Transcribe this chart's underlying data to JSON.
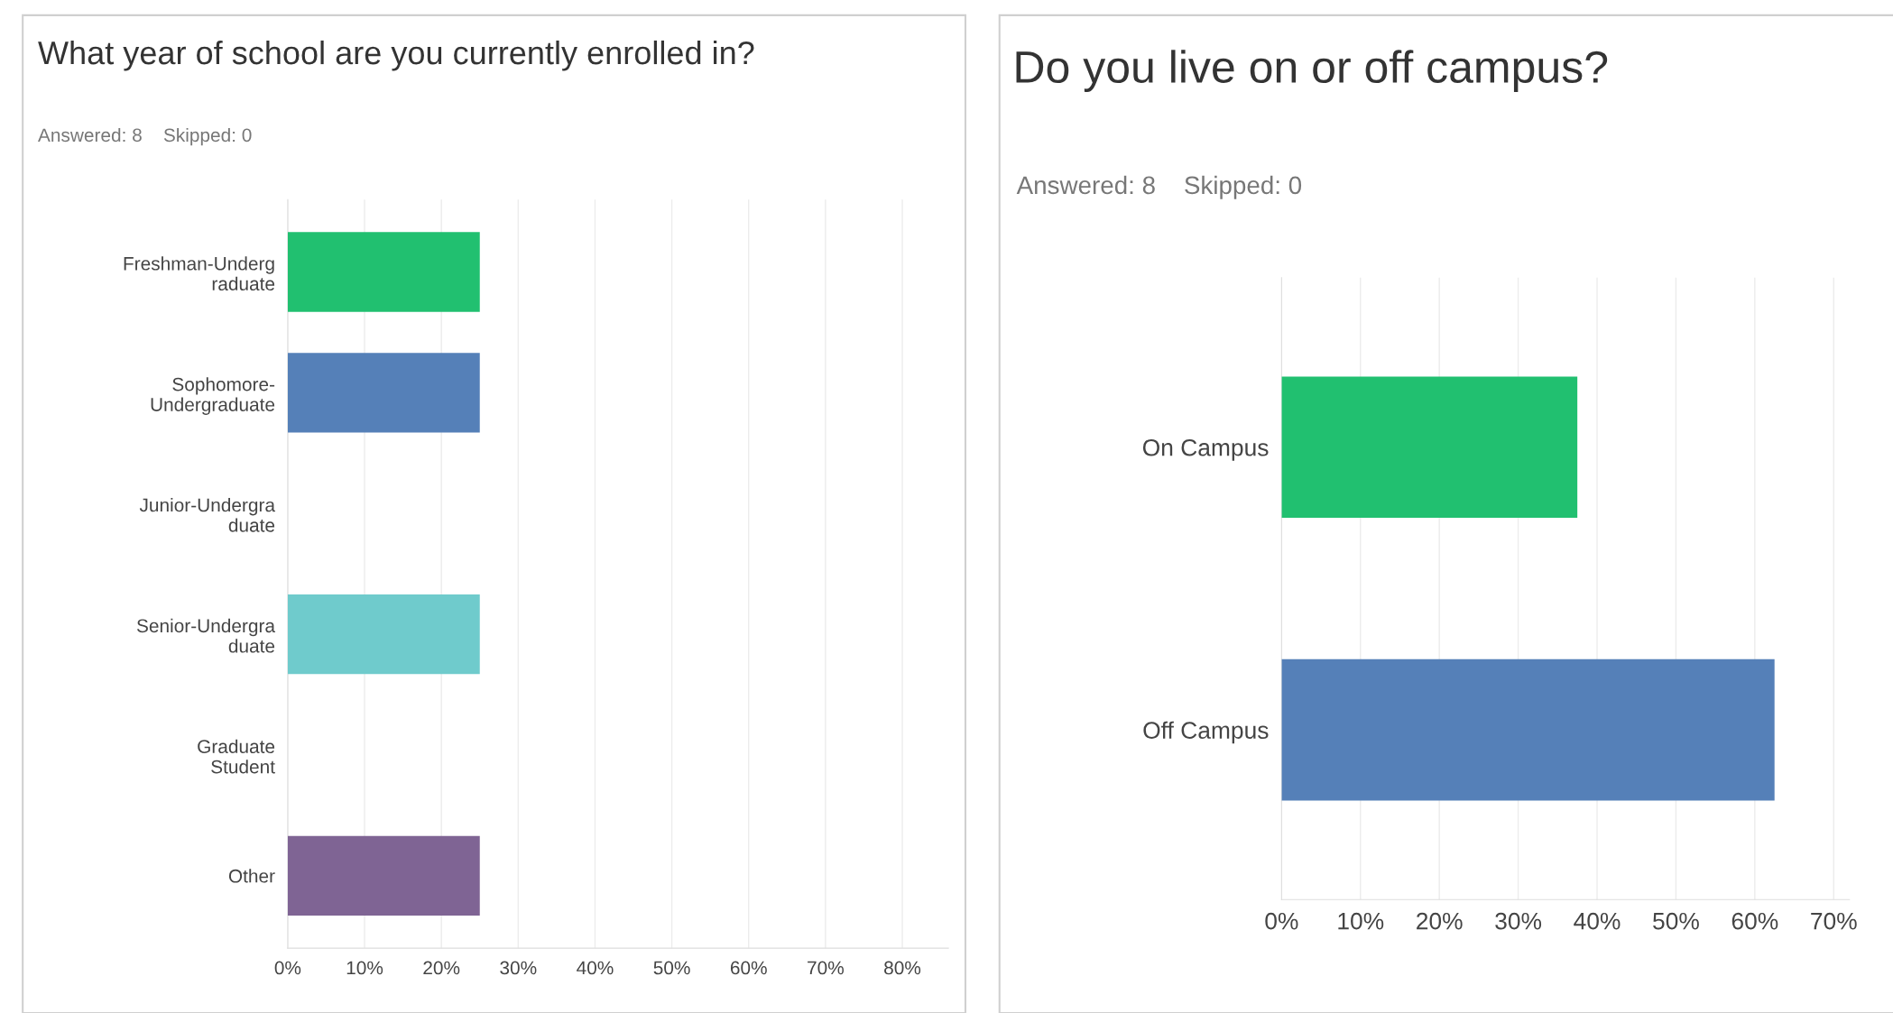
{
  "chart_data": [
    {
      "type": "bar",
      "orientation": "horizontal",
      "title": "What year of school are you currently enrolled in?",
      "subtitle": "Answered: 8    Skipped: 0",
      "categories": [
        "Freshman-Underg\nraduate",
        "Sophomore-\nUndergraduate",
        "Junior-Undergra\nduate",
        "Senior-Undergra\nduate",
        "Graduate\nStudent",
        "Other"
      ],
      "values": [
        25,
        25,
        0,
        25,
        0,
        25
      ],
      "colors": [
        "#21c070",
        "#5580b8",
        "#5580b8",
        "#6fcbcc",
        "#5580b8",
        "#7f6494"
      ],
      "xlim": [
        0,
        86
      ],
      "xticks": [
        {
          "value": 0,
          "label": "0%"
        },
        {
          "value": 10,
          "label": "10%"
        },
        {
          "value": 20,
          "label": "20%"
        },
        {
          "value": 30,
          "label": "30%"
        },
        {
          "value": 40,
          "label": "40%"
        },
        {
          "value": 50,
          "label": "50%"
        },
        {
          "value": 60,
          "label": "60%"
        },
        {
          "value": 70,
          "label": "70%"
        },
        {
          "value": 80,
          "label": "80%"
        }
      ],
      "grid": "x",
      "legend": false
    },
    {
      "type": "bar",
      "orientation": "horizontal",
      "title": "Do you live on or off campus?",
      "subtitle": "Answered: 8    Skipped: 0",
      "categories": [
        "On Campus",
        "Off Campus"
      ],
      "values": [
        37.5,
        62.5
      ],
      "colors": [
        "#21c070",
        "#5580b8"
      ],
      "xlim": [
        0,
        72
      ],
      "xticks": [
        {
          "value": 0,
          "label": "0%"
        },
        {
          "value": 10,
          "label": "10%"
        },
        {
          "value": 20,
          "label": "20%"
        },
        {
          "value": 30,
          "label": "30%"
        },
        {
          "value": 40,
          "label": "40%"
        },
        {
          "value": 50,
          "label": "50%"
        },
        {
          "value": 60,
          "label": "60%"
        },
        {
          "value": 70,
          "label": "70%"
        }
      ],
      "grid": "x",
      "legend": false
    }
  ]
}
